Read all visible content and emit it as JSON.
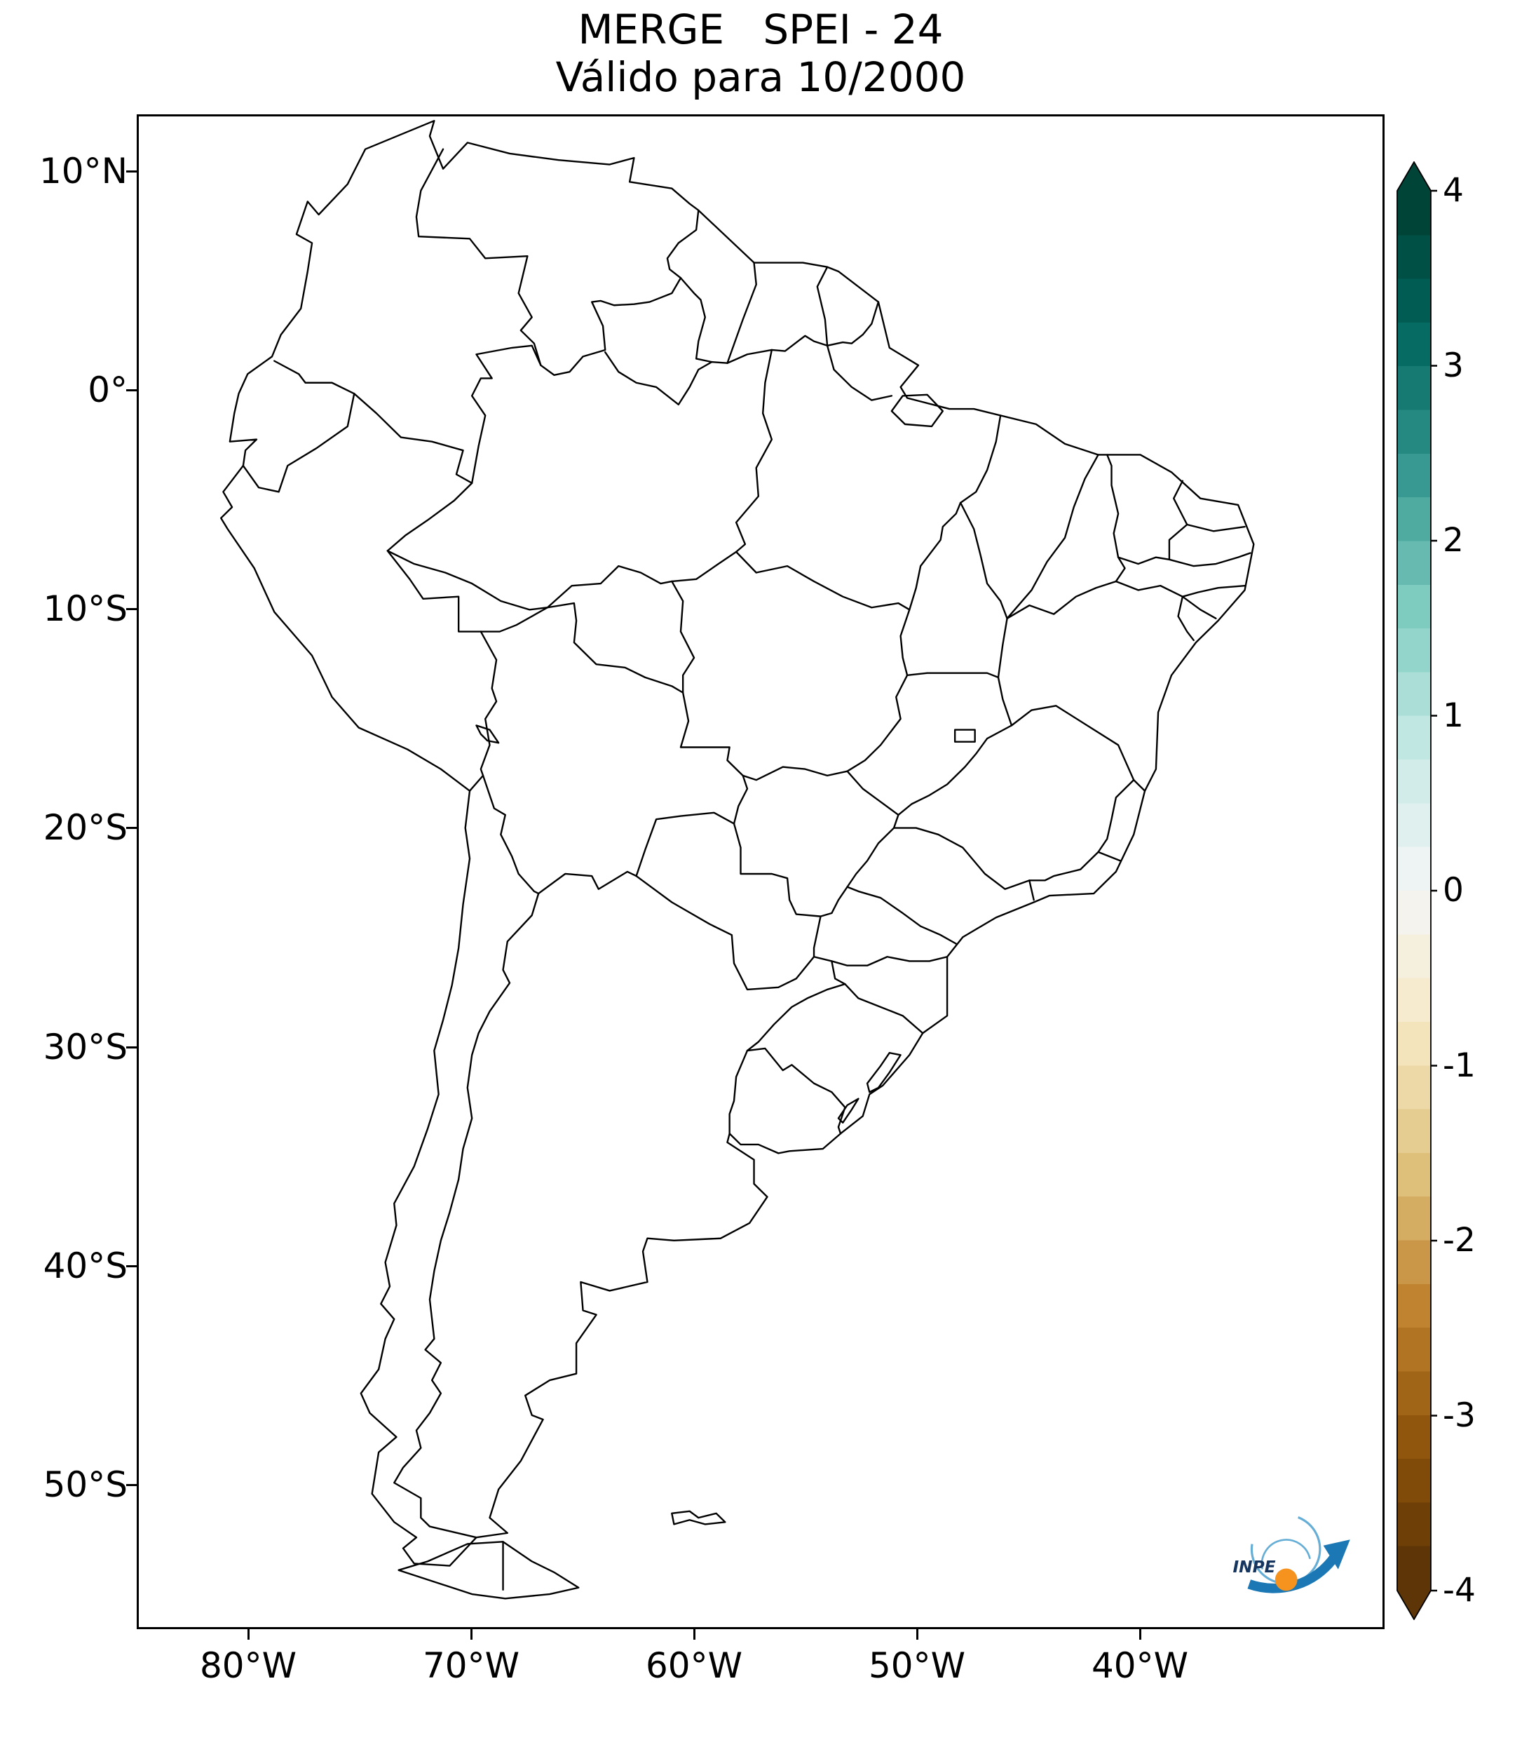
{
  "figure": {
    "title_line1": "MERGE   SPEI - 24",
    "title_line2": "Válido para 10/2000"
  },
  "axes": {
    "y_tick_labels": [
      "10°N",
      "0°",
      "10°S",
      "20°S",
      "30°S",
      "40°S",
      "50°S"
    ],
    "x_tick_labels": [
      "80°W",
      "70°W",
      "60°W",
      "50°W",
      "40°W"
    ]
  },
  "colorbar": {
    "tick_labels": [
      "4",
      "3",
      "2",
      "1",
      "0",
      "-1",
      "-2",
      "-3",
      "-4"
    ],
    "value_max": 4,
    "value_min": -4,
    "anchors": [
      "#543005",
      "#8c510a",
      "#bf812d",
      "#dfc27d",
      "#f6e8c3",
      "#f5f5f5",
      "#c7eae5",
      "#80cdc1",
      "#35978f",
      "#01665e",
      "#003c30"
    ]
  },
  "map": {
    "line_color": "#000000"
  },
  "logo": {
    "text": "INPE",
    "arrow_color": "#1b78b5",
    "globe_color": "#f6921e"
  }
}
